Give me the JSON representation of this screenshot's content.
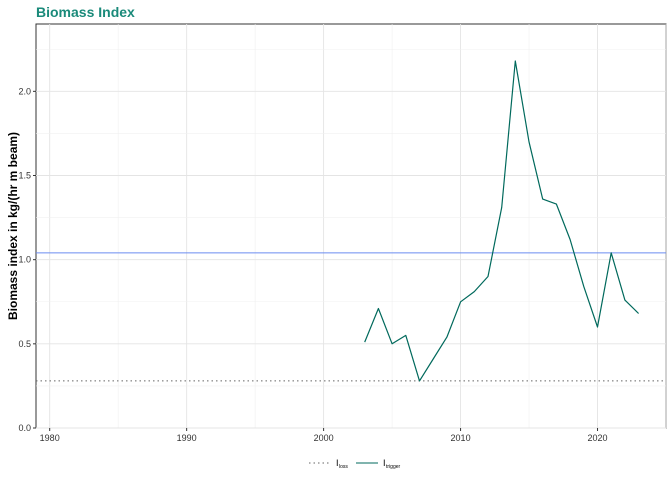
{
  "chart_data": {
    "type": "line",
    "title": "Biomass Index",
    "xlabel": "",
    "ylabel": "Biomass index in kg/(hr m beam)",
    "xlim": [
      1979,
      2025
    ],
    "ylim": [
      0,
      2.4
    ],
    "x_ticks": [
      1980,
      1990,
      2000,
      2010,
      2020
    ],
    "y_ticks": [
      "0.0",
      "0.5",
      "1.0",
      "1.5",
      "2.0"
    ],
    "grid": true,
    "legend_position": "bottom",
    "series": [
      {
        "name": "I_trigger",
        "color": "#00695c",
        "x": [
          2003,
          2004,
          2005,
          2006,
          2007,
          2008,
          2009,
          2010,
          2011,
          2012,
          2013,
          2014,
          2015,
          2016,
          2017,
          2018,
          2019,
          2020,
          2021,
          2022,
          2023
        ],
        "y": [
          0.51,
          0.71,
          0.5,
          0.55,
          0.28,
          0.41,
          0.54,
          0.75,
          0.81,
          0.9,
          1.31,
          2.18,
          1.7,
          1.36,
          1.33,
          1.12,
          0.84,
          0.6,
          1.04,
          0.76,
          0.68
        ]
      }
    ],
    "reference_lines": [
      {
        "name": "I_loss",
        "value": 0.28,
        "style": "dotted",
        "color": "#666666"
      },
      {
        "name": "",
        "value": 1.04,
        "style": "solid",
        "color": "#6b8cf0"
      }
    ],
    "legend": [
      {
        "main": "I",
        "sub": "loss",
        "style": "dotted",
        "color": "#666666"
      },
      {
        "main": "I",
        "sub": "trigger",
        "style": "solid",
        "color": "#00695c"
      }
    ]
  }
}
